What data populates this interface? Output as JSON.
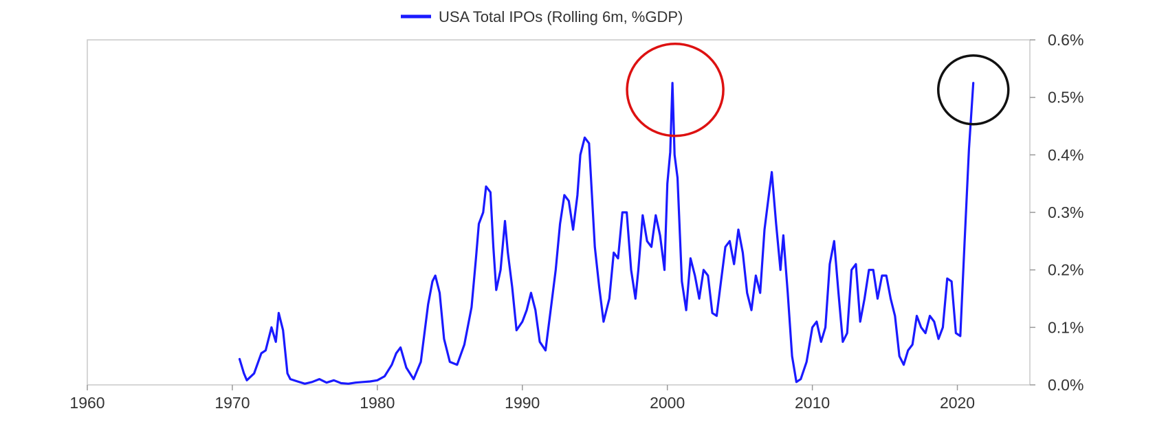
{
  "chart_data": {
    "type": "line",
    "title": "",
    "xlabel": "",
    "ylabel": "",
    "xlim": [
      1960,
      2025
    ],
    "ylim": [
      0,
      0.6
    ],
    "x_ticks": [
      1960,
      1970,
      1980,
      1990,
      2000,
      2010,
      2020
    ],
    "x_tick_labels": [
      "1960",
      "1970",
      "1980",
      "1990",
      "2000",
      "2010",
      "2020"
    ],
    "y_ticks": [
      0,
      0.1,
      0.2,
      0.3,
      0.4,
      0.5,
      0.6
    ],
    "y_tick_labels": [
      "0.0%",
      "0.1%",
      "0.2%",
      "0.3%",
      "0.4%",
      "0.5%",
      "0.6%"
    ],
    "y_axis_side": "right",
    "grid": false,
    "legend_position": "top-center",
    "series": [
      {
        "name": "USA Total IPOs (Rolling 6m, %GDP)",
        "color": "#1a1aff",
        "points": [
          [
            1970.5,
            0.045
          ],
          [
            1970.8,
            0.02
          ],
          [
            1971.0,
            0.008
          ],
          [
            1971.5,
            0.02
          ],
          [
            1972.0,
            0.055
          ],
          [
            1972.3,
            0.06
          ],
          [
            1972.7,
            0.1
          ],
          [
            1973.0,
            0.075
          ],
          [
            1973.2,
            0.125
          ],
          [
            1973.5,
            0.095
          ],
          [
            1973.8,
            0.02
          ],
          [
            1974.0,
            0.01
          ],
          [
            1974.5,
            0.006
          ],
          [
            1975.0,
            0.002
          ],
          [
            1975.5,
            0.005
          ],
          [
            1976.0,
            0.01
          ],
          [
            1976.5,
            0.004
          ],
          [
            1977.0,
            0.008
          ],
          [
            1977.5,
            0.003
          ],
          [
            1978.0,
            0.002
          ],
          [
            1978.5,
            0.004
          ],
          [
            1979.0,
            0.005
          ],
          [
            1979.5,
            0.006
          ],
          [
            1980.0,
            0.008
          ],
          [
            1980.5,
            0.015
          ],
          [
            1981.0,
            0.035
          ],
          [
            1981.3,
            0.055
          ],
          [
            1981.6,
            0.065
          ],
          [
            1982.0,
            0.03
          ],
          [
            1982.5,
            0.01
          ],
          [
            1983.0,
            0.04
          ],
          [
            1983.5,
            0.14
          ],
          [
            1983.8,
            0.18
          ],
          [
            1984.0,
            0.19
          ],
          [
            1984.3,
            0.16
          ],
          [
            1984.6,
            0.08
          ],
          [
            1985.0,
            0.04
          ],
          [
            1985.5,
            0.035
          ],
          [
            1986.0,
            0.07
          ],
          [
            1986.5,
            0.135
          ],
          [
            1986.8,
            0.22
          ],
          [
            1987.0,
            0.28
          ],
          [
            1987.3,
            0.3
          ],
          [
            1987.5,
            0.345
          ],
          [
            1987.8,
            0.335
          ],
          [
            1988.0,
            0.24
          ],
          [
            1988.2,
            0.165
          ],
          [
            1988.5,
            0.2
          ],
          [
            1988.8,
            0.285
          ],
          [
            1989.0,
            0.23
          ],
          [
            1989.3,
            0.17
          ],
          [
            1989.6,
            0.095
          ],
          [
            1990.0,
            0.11
          ],
          [
            1990.3,
            0.13
          ],
          [
            1990.6,
            0.16
          ],
          [
            1990.9,
            0.13
          ],
          [
            1991.2,
            0.075
          ],
          [
            1991.6,
            0.06
          ],
          [
            1992.0,
            0.14
          ],
          [
            1992.3,
            0.2
          ],
          [
            1992.6,
            0.28
          ],
          [
            1992.9,
            0.33
          ],
          [
            1993.2,
            0.32
          ],
          [
            1993.5,
            0.27
          ],
          [
            1993.8,
            0.33
          ],
          [
            1994.0,
            0.4
          ],
          [
            1994.3,
            0.43
          ],
          [
            1994.6,
            0.42
          ],
          [
            1994.8,
            0.33
          ],
          [
            1995.0,
            0.24
          ],
          [
            1995.3,
            0.17
          ],
          [
            1995.6,
            0.11
          ],
          [
            1996.0,
            0.15
          ],
          [
            1996.3,
            0.23
          ],
          [
            1996.6,
            0.22
          ],
          [
            1996.9,
            0.3
          ],
          [
            1997.2,
            0.3
          ],
          [
            1997.5,
            0.2
          ],
          [
            1997.8,
            0.15
          ],
          [
            1998.0,
            0.2
          ],
          [
            1998.3,
            0.295
          ],
          [
            1998.6,
            0.25
          ],
          [
            1998.9,
            0.24
          ],
          [
            1999.2,
            0.295
          ],
          [
            1999.5,
            0.26
          ],
          [
            1999.8,
            0.2
          ],
          [
            2000.0,
            0.35
          ],
          [
            2000.2,
            0.405
          ],
          [
            2000.35,
            0.525
          ],
          [
            2000.5,
            0.4
          ],
          [
            2000.7,
            0.36
          ],
          [
            2001.0,
            0.18
          ],
          [
            2001.3,
            0.13
          ],
          [
            2001.6,
            0.22
          ],
          [
            2001.9,
            0.19
          ],
          [
            2002.2,
            0.15
          ],
          [
            2002.5,
            0.2
          ],
          [
            2002.8,
            0.19
          ],
          [
            2003.1,
            0.125
          ],
          [
            2003.4,
            0.12
          ],
          [
            2003.7,
            0.18
          ],
          [
            2004.0,
            0.24
          ],
          [
            2004.3,
            0.25
          ],
          [
            2004.6,
            0.21
          ],
          [
            2004.9,
            0.27
          ],
          [
            2005.2,
            0.23
          ],
          [
            2005.5,
            0.16
          ],
          [
            2005.8,
            0.13
          ],
          [
            2006.1,
            0.19
          ],
          [
            2006.4,
            0.16
          ],
          [
            2006.7,
            0.27
          ],
          [
            2007.0,
            0.33
          ],
          [
            2007.2,
            0.37
          ],
          [
            2007.5,
            0.28
          ],
          [
            2007.8,
            0.2
          ],
          [
            2008.0,
            0.26
          ],
          [
            2008.3,
            0.16
          ],
          [
            2008.6,
            0.05
          ],
          [
            2008.9,
            0.005
          ],
          [
            2009.2,
            0.01
          ],
          [
            2009.6,
            0.04
          ],
          [
            2010.0,
            0.1
          ],
          [
            2010.3,
            0.11
          ],
          [
            2010.6,
            0.075
          ],
          [
            2010.9,
            0.1
          ],
          [
            2011.2,
            0.21
          ],
          [
            2011.5,
            0.25
          ],
          [
            2011.8,
            0.16
          ],
          [
            2012.1,
            0.075
          ],
          [
            2012.4,
            0.09
          ],
          [
            2012.7,
            0.2
          ],
          [
            2013.0,
            0.21
          ],
          [
            2013.3,
            0.11
          ],
          [
            2013.6,
            0.15
          ],
          [
            2013.9,
            0.2
          ],
          [
            2014.2,
            0.2
          ],
          [
            2014.5,
            0.15
          ],
          [
            2014.8,
            0.19
          ],
          [
            2015.1,
            0.19
          ],
          [
            2015.4,
            0.15
          ],
          [
            2015.7,
            0.12
          ],
          [
            2016.0,
            0.05
          ],
          [
            2016.3,
            0.035
          ],
          [
            2016.6,
            0.06
          ],
          [
            2016.9,
            0.07
          ],
          [
            2017.2,
            0.12
          ],
          [
            2017.5,
            0.1
          ],
          [
            2017.8,
            0.09
          ],
          [
            2018.1,
            0.12
          ],
          [
            2018.4,
            0.11
          ],
          [
            2018.7,
            0.08
          ],
          [
            2019.0,
            0.1
          ],
          [
            2019.3,
            0.185
          ],
          [
            2019.6,
            0.18
          ],
          [
            2019.9,
            0.09
          ],
          [
            2020.2,
            0.085
          ],
          [
            2020.5,
            0.25
          ],
          [
            2020.8,
            0.41
          ],
          [
            2021.1,
            0.525
          ]
        ]
      }
    ],
    "annotations": [
      {
        "shape": "ellipse",
        "color": "#dd1111",
        "around": [
          2000.35,
          0.525
        ]
      },
      {
        "shape": "ellipse",
        "color": "#111111",
        "around": [
          2021.1,
          0.525
        ]
      }
    ]
  }
}
